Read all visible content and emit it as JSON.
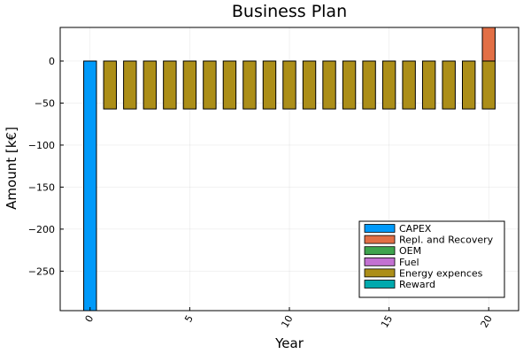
{
  "chart_data": {
    "type": "bar",
    "title": "Business Plan",
    "xlabel": "Year",
    "ylabel": "Amount [k€]",
    "xlim": [
      -1.5,
      21.5
    ],
    "ylim": [
      -297,
      40
    ],
    "xticks": [
      0,
      5,
      10,
      15,
      20
    ],
    "xtick_labels": [
      "0",
      "5",
      "10",
      "15",
      "20"
    ],
    "yticks": [
      0,
      -50,
      -100,
      -150,
      -200,
      -250
    ],
    "ytick_labels": [
      "0",
      "−50",
      "−100",
      "−150",
      "−200",
      "−250"
    ],
    "grid": true,
    "legend_position": "bottom-right",
    "years": [
      0,
      1,
      2,
      3,
      4,
      5,
      6,
      7,
      8,
      9,
      10,
      11,
      12,
      13,
      14,
      15,
      16,
      17,
      18,
      19,
      20
    ],
    "series": [
      {
        "name": "CAPEX",
        "color": "#009AFA",
        "values": [
          -297,
          0,
          0,
          0,
          0,
          0,
          0,
          0,
          0,
          0,
          0,
          0,
          0,
          0,
          0,
          0,
          0,
          0,
          0,
          0,
          0
        ]
      },
      {
        "name": "Repl. and Recovery",
        "color": "#E26F46",
        "values": [
          0,
          0,
          0,
          0,
          0,
          0,
          0,
          0,
          0,
          0,
          0,
          0,
          0,
          0,
          0,
          0,
          0,
          0,
          0,
          0,
          40
        ]
      },
      {
        "name": "OEM",
        "color": "#3EA44E",
        "values": [
          0,
          0,
          0,
          0,
          0,
          0,
          0,
          0,
          0,
          0,
          0,
          0,
          0,
          0,
          0,
          0,
          0,
          0,
          0,
          0,
          0
        ]
      },
      {
        "name": "Fuel",
        "color": "#C371D2",
        "values": [
          0,
          0,
          0,
          0,
          0,
          0,
          0,
          0,
          0,
          0,
          0,
          0,
          0,
          0,
          0,
          0,
          0,
          0,
          0,
          0,
          0
        ]
      },
      {
        "name": "Energy expences",
        "color": "#AC8E18",
        "values": [
          0,
          -57,
          -57,
          -57,
          -57,
          -57,
          -57,
          -57,
          -57,
          -57,
          -57,
          -57,
          -57,
          -57,
          -57,
          -57,
          -57,
          -57,
          -57,
          -57,
          -57
        ]
      },
      {
        "name": "Reward",
        "color": "#00A9AD",
        "values": [
          0,
          0,
          0,
          0,
          0,
          0,
          0,
          0,
          0,
          0,
          0,
          0,
          0,
          0,
          0,
          0,
          0,
          0,
          0,
          0,
          0
        ]
      }
    ]
  }
}
